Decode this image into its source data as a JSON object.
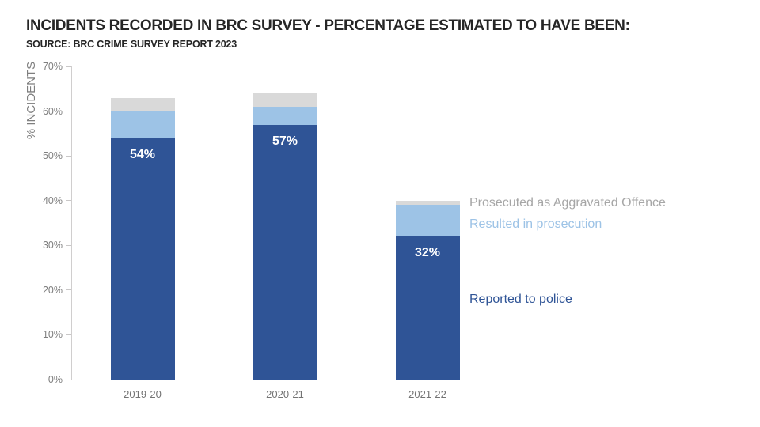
{
  "header": {
    "title": "INCIDENTS RECORDED IN BRC SURVEY - PERCENTAGE ESTIMATED TO HAVE BEEN:",
    "source": "SOURCE: BRC CRIME SURVEY REPORT 2023"
  },
  "colors": {
    "reported_to_police": "#2f5496",
    "resulted_in_prosecution": "#9dc3e6",
    "prosecuted_aggravated": "#d9d9d9",
    "title_text": "#262626",
    "axis_text": "#7f7f7f",
    "category_text": "#737373",
    "axis_line": "#d0cece",
    "bar_label_text": "#ffffff"
  },
  "chart_data": {
    "type": "bar",
    "stacked": true,
    "title": "INCIDENTS RECORDED IN BRC SURVEY - PERCENTAGE ESTIMATED TO HAVE BEEN:",
    "subtitle": "SOURCE: BRC CRIME SURVEY REPORT 2023",
    "categories": [
      "2019-20",
      "2020-21",
      "2021-22"
    ],
    "series": [
      {
        "name": "Reported to police",
        "values": [
          54,
          57,
          32
        ],
        "labels": [
          "54%",
          "57%",
          "32%"
        ],
        "color": "#2f5496"
      },
      {
        "name": "Resulted in prosecution",
        "values": [
          6,
          4,
          7
        ],
        "labels": [],
        "color": "#9dc3e6"
      },
      {
        "name": "Prosecuted as Aggravated Offence",
        "values": [
          3,
          3,
          1
        ],
        "labels": [],
        "color": "#d9d9d9"
      }
    ],
    "stack_totals": [
      63,
      64,
      40
    ],
    "xlabel": "",
    "ylabel": "% INCIDENTS",
    "ylim": [
      0,
      70
    ],
    "ytick_step": 10,
    "ytick_labels": [
      "0%",
      "10%",
      "20%",
      "30%",
      "40%",
      "50%",
      "60%",
      "70%"
    ],
    "grid": false,
    "legend_position": "right-annotations"
  },
  "annotations": [
    {
      "text": "Prosecuted as Aggravated Offence",
      "color": "#a6a6a6"
    },
    {
      "text": "Resulted in prosecution",
      "color": "#9dc3e6"
    },
    {
      "text": "Reported to police",
      "color": "#2f5496"
    }
  ]
}
